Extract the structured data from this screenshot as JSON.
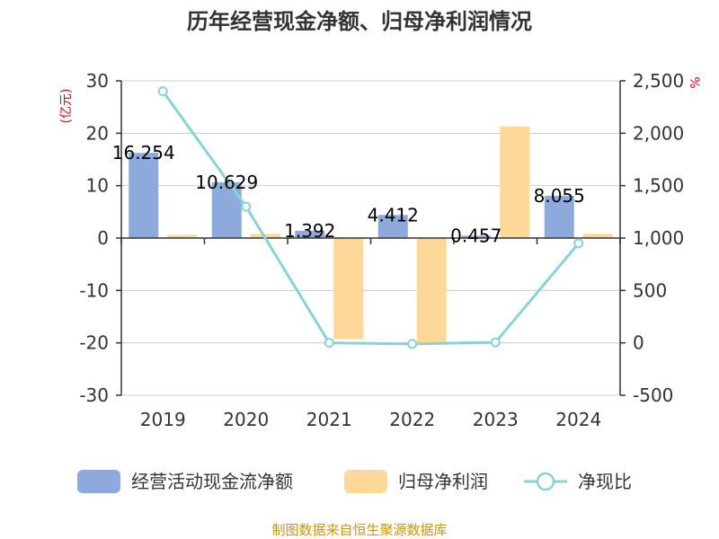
{
  "chart_data": {
    "type": "bar",
    "title": "历年经营现金净额、归母净利润情况",
    "categories": [
      "2019",
      "2020",
      "2021",
      "2022",
      "2023",
      "2024"
    ],
    "left_axis": {
      "unit": "(亿元)",
      "min": -30,
      "max": 30,
      "ticks": [
        30,
        20,
        10,
        0,
        -10,
        -20,
        -30
      ]
    },
    "right_axis": {
      "unit": "%",
      "min": -500,
      "max": 2500,
      "ticks": [
        "2,500",
        "2,000",
        "1,500",
        "1,000",
        "500",
        "0",
        "-500"
      ],
      "tick_values": [
        2500,
        2000,
        1500,
        1000,
        500,
        0,
        -500
      ]
    },
    "series": [
      {
        "name": "经营活动现金流净额",
        "type": "bar",
        "axis": "left",
        "color": "#8eaadc",
        "values": [
          16.254,
          10.629,
          1.392,
          4.412,
          0.457,
          8.055
        ],
        "labels": [
          "16.254",
          "10.629",
          "1.392",
          "4.412",
          "0.457",
          "8.055"
        ]
      },
      {
        "name": "归母净利润",
        "type": "bar",
        "axis": "left",
        "color": "#fdd898",
        "values": [
          0.6,
          0.8,
          -19.3,
          -20.2,
          21.3,
          0.8
        ]
      },
      {
        "name": "净现比",
        "type": "line",
        "axis": "right",
        "color": "#88d3d6",
        "values": [
          2400,
          1300,
          0,
          -10,
          5,
          950
        ]
      }
    ],
    "grid": true,
    "legend_position": "bottom"
  },
  "footer": {
    "source": "制图数据来自恒生聚源数据库"
  }
}
